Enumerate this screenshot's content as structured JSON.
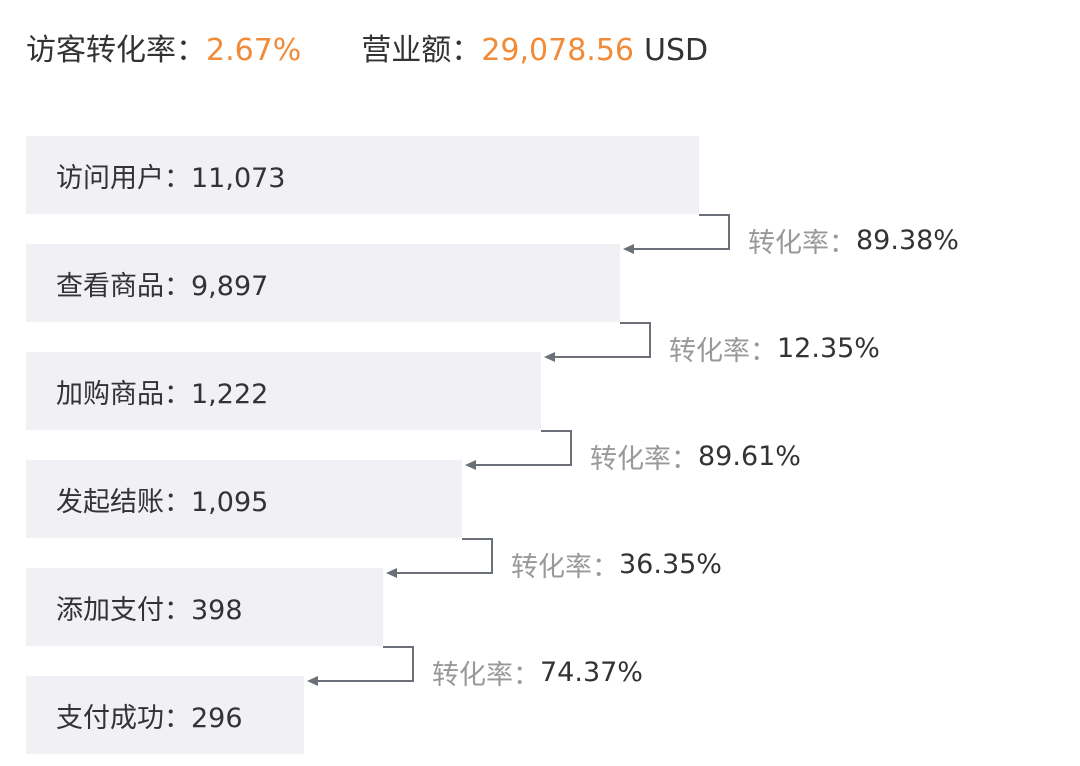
{
  "summary": {
    "conversion_label": "访客转化率：",
    "conversion_value": "2.67%",
    "revenue_label": "营业额：",
    "revenue_value": "29,078.56",
    "revenue_unit": "USD"
  },
  "colors": {
    "bar": "#f0f0f5",
    "connector": "#6b6f78",
    "accent": "#f28b38",
    "rate_prefix": "#999999",
    "text": "#333333"
  },
  "chart_data": {
    "type": "bar",
    "orientation": "horizontal-funnel",
    "categories": [
      "访问用户",
      "查看商品",
      "加购商品",
      "发起结账",
      "添加支付",
      "支付成功"
    ],
    "values": [
      11073,
      9897,
      1222,
      1095,
      398,
      296
    ],
    "stage_labels": [
      "访问用户：11,073",
      "查看商品：9,897",
      "加购商品：1,222",
      "发起结账：1,095",
      "添加支付：398",
      "支付成功：296"
    ],
    "rate_prefix": "转化率：",
    "rates": [
      "89.38%",
      "12.35%",
      "89.61%",
      "36.35%",
      "74.37%"
    ],
    "grid": false
  }
}
